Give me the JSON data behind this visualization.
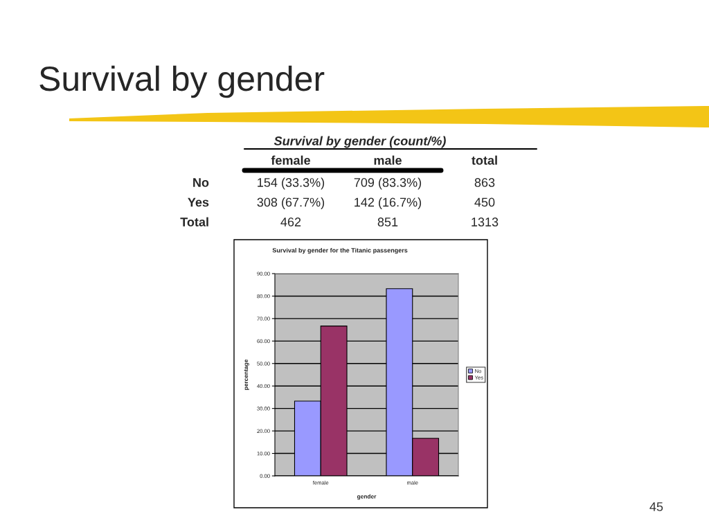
{
  "chart_data": [
    {
      "type": "other",
      "title": "Survival by gender",
      "subtitle": "Survival by gender (count/%)",
      "categories": [
        "female",
        "male",
        "total"
      ],
      "y_categories": [
        "No",
        "Yes",
        "Total"
      ],
      "cell_labels": [
        [
          "154 (33.3%)",
          "709 (83.3%)",
          "863"
        ],
        [
          "308 (67.7%)",
          "142 (16.7%)",
          "450"
        ],
        [
          "462",
          "851",
          "1313"
        ]
      ],
      "annotations": [
        "45"
      ]
    },
    {
      "type": "bar",
      "title": "Survival by gender for the Titanic passengers",
      "xlabel": "gender",
      "ylabel": "percentage",
      "categories": [
        "female",
        "male"
      ],
      "series": [
        {
          "name": "No",
          "color": "#9999ff",
          "values": [
            33.3,
            83.3
          ]
        },
        {
          "name": "Yes",
          "color": "#993366",
          "values": [
            66.7,
            16.7
          ]
        }
      ],
      "ylim": [
        0,
        90
      ],
      "yticks": [
        {
          "value": 0,
          "label": "0.00"
        },
        {
          "value": 10,
          "label": "10.00"
        },
        {
          "value": 20,
          "label": "20.00"
        },
        {
          "value": 30,
          "label": "30.00"
        },
        {
          "value": 40,
          "label": "40.00"
        },
        {
          "value": 50,
          "label": "50.00"
        },
        {
          "value": 60,
          "label": "60.00"
        },
        {
          "value": 70,
          "label": "70.00"
        },
        {
          "value": 80,
          "label": "80.00"
        },
        {
          "value": 90,
          "label": "90.00"
        }
      ],
      "grid": "y",
      "legend": "right"
    }
  ]
}
